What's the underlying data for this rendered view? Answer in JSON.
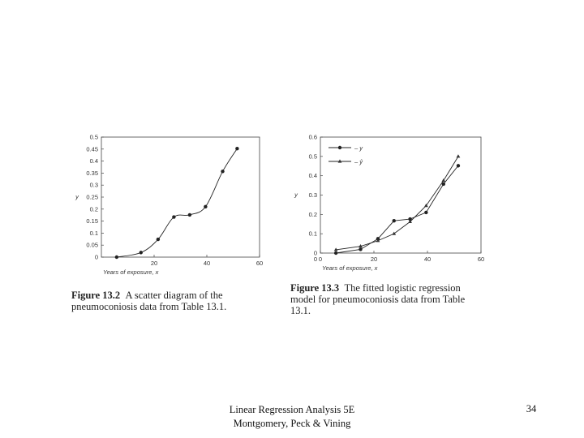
{
  "chart_data": [
    {
      "type": "scatter",
      "title": "",
      "xlabel": "Years of exposure, x",
      "ylabel": "y",
      "xlim": [
        0,
        60
      ],
      "ylim": [
        0,
        0.5
      ],
      "x_ticks": [
        "20",
        "40",
        "60"
      ],
      "y_ticks": [
        "0",
        "0.05",
        "0.1",
        "0.15",
        "0.2",
        "0.25",
        "0.3",
        "0.35",
        "0.4",
        "0.45",
        "0.5"
      ],
      "grid": false,
      "series": [
        {
          "x": [
            5.8,
            15,
            21.5,
            27.5,
            33.5,
            39.5,
            46,
            51.5
          ],
          "y": [
            0.0,
            0.019,
            0.074,
            0.167,
            0.176,
            0.21,
            0.357,
            0.452
          ]
        }
      ]
    },
    {
      "type": "line",
      "title": "",
      "xlabel": "Years of exposure, x",
      "ylabel": "y",
      "xlim": [
        0,
        60
      ],
      "ylim": [
        0,
        0.6
      ],
      "x_ticks": [
        "0",
        "20",
        "40",
        "60"
      ],
      "y_ticks": [
        "0",
        "0.1",
        "0.2",
        "0.3",
        "0.4",
        "0.5",
        "0.6"
      ],
      "grid": false,
      "legend_position": "top-left",
      "series": [
        {
          "name": "y",
          "marker": "circle",
          "x": [
            5.8,
            15,
            21.5,
            27.5,
            33.5,
            39.5,
            46,
            51.5
          ],
          "y": [
            0.0,
            0.019,
            0.074,
            0.167,
            0.176,
            0.21,
            0.357,
            0.452
          ]
        },
        {
          "name": "ŷ",
          "marker": "triangle",
          "x": [
            5.8,
            15,
            21.5,
            27.5,
            33.5,
            39.5,
            46,
            51.5
          ],
          "y": [
            0.017,
            0.035,
            0.064,
            0.1,
            0.162,
            0.245,
            0.375,
            0.5
          ]
        }
      ]
    }
  ],
  "captions": [
    {
      "label": "Figure 13.2",
      "text_lines": [
        "A scatter diagram of the",
        "pneumoconiosis data from Table 13.1."
      ]
    },
    {
      "label": "Figure 13.3",
      "text_lines": [
        "The fitted logistic regression",
        "model for pneumoconiosis data from Table",
        "13.1."
      ]
    }
  ],
  "footer": {
    "line1": "Linear Regression Analysis 5E",
    "line2": "Montgomery, Peck & Vining",
    "page_number": "34"
  }
}
